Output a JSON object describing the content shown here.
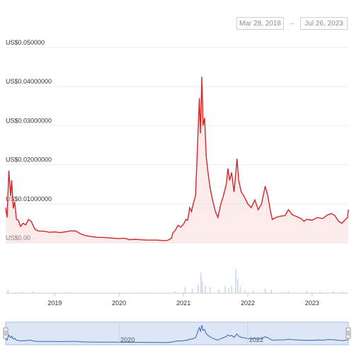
{
  "date_range": {
    "from": "Mar 28, 2018",
    "to": "Jul 26, 2023",
    "arrow": "→"
  },
  "colors": {
    "line": "#d62728",
    "area": "#f6d2d2",
    "volume": "#c9d9ee",
    "navigator_fill": "#dbe6f6",
    "navigator_line": "#3a66b5"
  },
  "chart_data": {
    "type": "line",
    "title": "",
    "xlabel": "",
    "ylabel": "",
    "y_tick_labels": [
      "US$0.050000",
      "US$0.04000000",
      "US$0.03000000",
      "US$0.02000000",
      "US$0.01000000",
      "US$0.00"
    ],
    "y_ticks": [
      0.05,
      0.04,
      0.03,
      0.02,
      0.01,
      0
    ],
    "ylim": [
      0,
      0.05
    ],
    "x_tick_labels": [
      "2019",
      "2020",
      "2021",
      "2022",
      "2023"
    ],
    "x_ticks": [
      "2019-01-01",
      "2020-01-01",
      "2021-01-01",
      "2022-01-01",
      "2023-01-01"
    ],
    "xlim": [
      "2018-03-28",
      "2023-07-26"
    ],
    "grid": true,
    "series": [
      {
        "values": [
          [
            "2018-03-28",
            0.009
          ],
          [
            "2018-04-05",
            0.0065
          ],
          [
            "2018-04-15",
            0.0185
          ],
          [
            "2018-04-25",
            0.012
          ],
          [
            "2018-05-01",
            0.016
          ],
          [
            "2018-05-10",
            0.0088
          ],
          [
            "2018-05-18",
            0.0105
          ],
          [
            "2018-05-28",
            0.006
          ],
          [
            "2018-06-08",
            0.0058
          ],
          [
            "2018-06-20",
            0.0042
          ],
          [
            "2018-07-05",
            0.005
          ],
          [
            "2018-07-20",
            0.0046
          ],
          [
            "2018-08-05",
            0.006
          ],
          [
            "2018-08-20",
            0.0055
          ],
          [
            "2018-09-10",
            0.0035
          ],
          [
            "2018-10-01",
            0.003
          ],
          [
            "2018-11-01",
            0.003
          ],
          [
            "2018-12-01",
            0.0027
          ],
          [
            "2019-01-01",
            0.0028
          ],
          [
            "2019-02-01",
            0.0026
          ],
          [
            "2019-03-01",
            0.0028
          ],
          [
            "2019-04-01",
            0.0031
          ],
          [
            "2019-05-01",
            0.003
          ],
          [
            "2019-06-01",
            0.0022
          ],
          [
            "2019-07-01",
            0.0018
          ],
          [
            "2019-08-01",
            0.0016
          ],
          [
            "2019-09-01",
            0.0014
          ],
          [
            "2019-10-01",
            0.0014
          ],
          [
            "2019-11-01",
            0.0013
          ],
          [
            "2019-12-01",
            0.0012
          ],
          [
            "2020-01-01",
            0.0011
          ],
          [
            "2020-02-01",
            0.0012
          ],
          [
            "2020-03-01",
            0.0008
          ],
          [
            "2020-04-01",
            0.0009
          ],
          [
            "2020-05-01",
            0.0008
          ],
          [
            "2020-06-01",
            0.0007
          ],
          [
            "2020-07-01",
            0.0007
          ],
          [
            "2020-08-01",
            0.0007
          ],
          [
            "2020-09-01",
            0.0006
          ],
          [
            "2020-10-01",
            0.0006
          ],
          [
            "2020-10-25",
            0.0012
          ],
          [
            "2020-11-01",
            0.0025
          ],
          [
            "2020-11-15",
            0.0032
          ],
          [
            "2020-12-01",
            0.0045
          ],
          [
            "2020-12-15",
            0.004
          ],
          [
            "2021-01-01",
            0.0048
          ],
          [
            "2021-01-15",
            0.006
          ],
          [
            "2021-01-25",
            0.0058
          ],
          [
            "2021-02-05",
            0.009
          ],
          [
            "2021-02-15",
            0.008
          ],
          [
            "2021-02-25",
            0.01
          ],
          [
            "2021-03-10",
            0.012
          ],
          [
            "2021-03-20",
            0.023
          ],
          [
            "2021-04-01",
            0.037
          ],
          [
            "2021-04-08",
            0.028
          ],
          [
            "2021-04-15",
            0.0425
          ],
          [
            "2021-04-22",
            0.03
          ],
          [
            "2021-05-01",
            0.032
          ],
          [
            "2021-05-10",
            0.022
          ],
          [
            "2021-05-20",
            0.018
          ],
          [
            "2021-06-01",
            0.014
          ],
          [
            "2021-06-15",
            0.011
          ],
          [
            "2021-07-01",
            0.008
          ],
          [
            "2021-07-15",
            0.0065
          ],
          [
            "2021-08-01",
            0.01
          ],
          [
            "2021-08-15",
            0.012
          ],
          [
            "2021-09-01",
            0.015
          ],
          [
            "2021-09-10",
            0.019
          ],
          [
            "2021-09-20",
            0.016
          ],
          [
            "2021-10-01",
            0.018
          ],
          [
            "2021-10-15",
            0.013
          ],
          [
            "2021-11-01",
            0.0215
          ],
          [
            "2021-11-10",
            0.016
          ],
          [
            "2021-11-25",
            0.013
          ],
          [
            "2021-12-10",
            0.012
          ],
          [
            "2022-01-01",
            0.01
          ],
          [
            "2022-01-20",
            0.009
          ],
          [
            "2022-02-10",
            0.011
          ],
          [
            "2022-03-01",
            0.0085
          ],
          [
            "2022-03-20",
            0.01
          ],
          [
            "2022-04-10",
            0.0145
          ],
          [
            "2022-04-25",
            0.012
          ],
          [
            "2022-05-10",
            0.008
          ],
          [
            "2022-05-20",
            0.006
          ],
          [
            "2022-06-10",
            0.0065
          ],
          [
            "2022-07-01",
            0.0068
          ],
          [
            "2022-08-01",
            0.007
          ],
          [
            "2022-08-20",
            0.0085
          ],
          [
            "2022-09-10",
            0.0072
          ],
          [
            "2022-10-01",
            0.0068
          ],
          [
            "2022-11-01",
            0.0062
          ],
          [
            "2022-11-15",
            0.0055
          ],
          [
            "2022-12-01",
            0.006
          ],
          [
            "2023-01-01",
            0.0058
          ],
          [
            "2023-02-01",
            0.0065
          ],
          [
            "2023-03-01",
            0.0062
          ],
          [
            "2023-04-01",
            0.0072
          ],
          [
            "2023-04-20",
            0.0075
          ],
          [
            "2023-05-10",
            0.007
          ],
          [
            "2023-06-01",
            0.0055
          ],
          [
            "2023-06-20",
            0.005
          ],
          [
            "2023-07-10",
            0.006
          ],
          [
            "2023-07-22",
            0.0065
          ],
          [
            "2023-07-26",
            0.0085
          ]
        ]
      }
    ],
    "volume": [
      [
        "2018-04-10",
        0.15
      ],
      [
        "2018-07-01",
        0.05
      ],
      [
        "2018-09-01",
        0.07
      ],
      [
        "2019-03-01",
        0.04
      ],
      [
        "2020-06-01",
        0.03
      ],
      [
        "2020-11-15",
        0.08
      ],
      [
        "2021-01-10",
        0.25
      ],
      [
        "2021-02-20",
        0.18
      ],
      [
        "2021-03-25",
        0.35
      ],
      [
        "2021-04-10",
        0.85
      ],
      [
        "2021-04-18",
        0.5
      ],
      [
        "2021-05-05",
        0.3
      ],
      [
        "2021-06-01",
        0.25
      ],
      [
        "2021-07-20",
        0.15
      ],
      [
        "2021-08-25",
        0.3
      ],
      [
        "2021-09-15",
        0.2
      ],
      [
        "2021-10-01",
        0.3
      ],
      [
        "2021-10-25",
        1.0
      ],
      [
        "2021-11-05",
        0.6
      ],
      [
        "2021-11-20",
        0.25
      ],
      [
        "2021-12-15",
        0.15
      ],
      [
        "2022-02-01",
        0.1
      ],
      [
        "2022-04-10",
        0.2
      ],
      [
        "2022-05-15",
        0.15
      ],
      [
        "2022-08-20",
        0.08
      ],
      [
        "2022-12-01",
        0.1
      ],
      [
        "2023-02-15",
        0.06
      ],
      [
        "2023-05-01",
        0.08
      ],
      [
        "2023-06-20",
        0.05
      ]
    ],
    "navigator_x_tick_labels": [
      "2020",
      "2022"
    ],
    "navigator_x_ticks": [
      "2020-01-01",
      "2022-01-01"
    ]
  }
}
